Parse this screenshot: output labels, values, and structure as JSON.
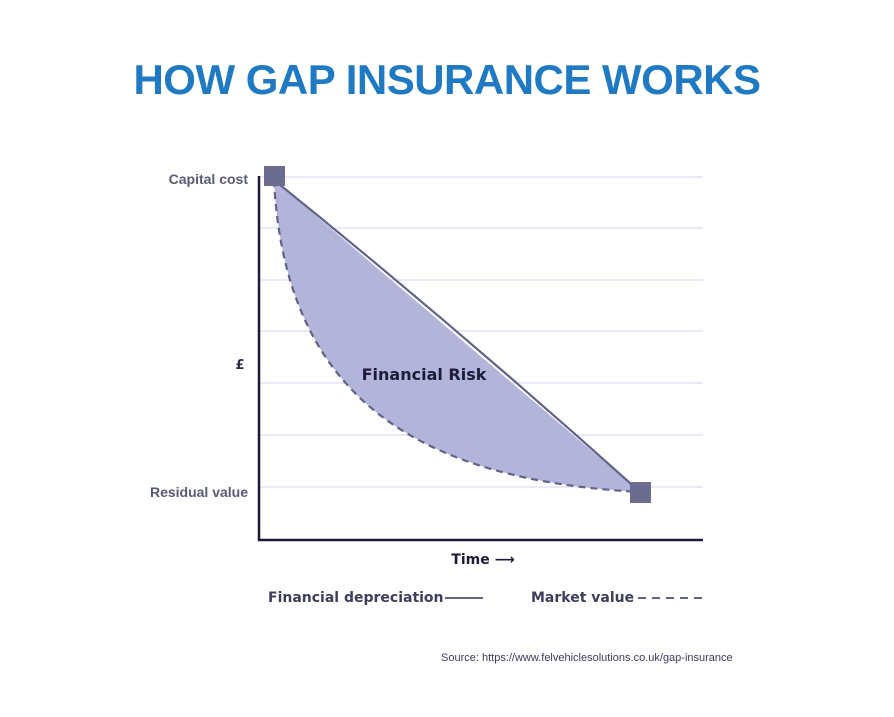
{
  "title": "HOW GAP INSURANCE WORKS",
  "diagram": {
    "y_axis_label": "£",
    "y_top_label": "Capital cost",
    "y_bottom_label": "Residual value",
    "x_axis_label": "Time ⟶",
    "area_label": "Financial Risk",
    "legend": {
      "solid": "Financial depreciation",
      "dashed": "Market value"
    },
    "colors": {
      "fill": "#b3b4d9",
      "line": "#626389",
      "marker": "#6b6c8f",
      "gridline": "#dcdcf2",
      "axis": "#1c1c3a",
      "text": "#3d3d5c"
    }
  },
  "source": "Source: https://www.felvehiclesolutions.co.uk/gap-insurance"
}
